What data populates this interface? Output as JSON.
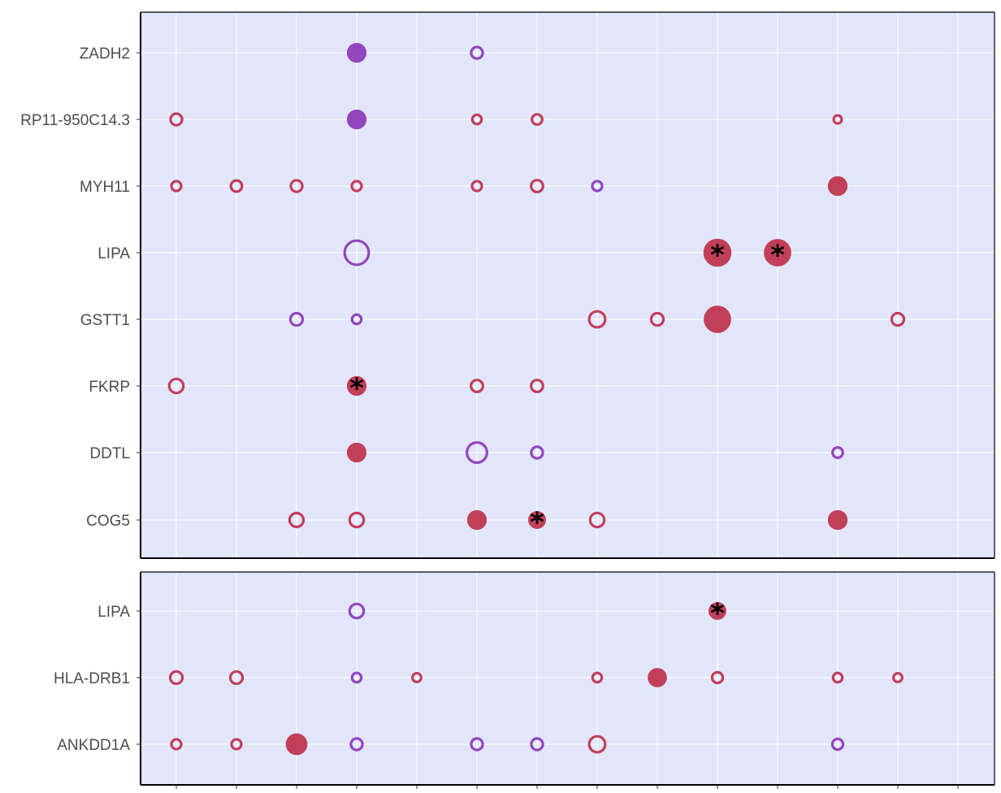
{
  "chart_data": {
    "type": "scatter",
    "description": "Dot plot of genes across 14 unlabeled columns; dot size = magnitude, filled = significant, star = highly significant",
    "columns": 14,
    "colors": {
      "panel_bg": "#e1e6fb",
      "grid": "#ffffff",
      "red": "#c23f5a",
      "purple": "#9346bd",
      "star": "#000000"
    },
    "panels": [
      {
        "name": "top",
        "genes": [
          "ZADH2",
          "RP11-950C14.3",
          "MYH11",
          "LIPA",
          "GSTT1",
          "FKRP",
          "DDTL",
          "COG5"
        ],
        "points": [
          {
            "gene": "ZADH2",
            "col": 4,
            "size": 3,
            "color": "purple",
            "filled": true,
            "star": false
          },
          {
            "gene": "ZADH2",
            "col": 6,
            "size": 1,
            "color": "purple",
            "filled": false,
            "star": false
          },
          {
            "gene": "RP11-950C14.3",
            "col": 1,
            "size": 1,
            "color": "red",
            "filled": false,
            "star": false
          },
          {
            "gene": "RP11-950C14.3",
            "col": 4,
            "size": 3,
            "color": "purple",
            "filled": true,
            "star": false
          },
          {
            "gene": "RP11-950C14.3",
            "col": 6,
            "size": 0.5,
            "color": "red",
            "filled": false,
            "star": false
          },
          {
            "gene": "RP11-950C14.3",
            "col": 7,
            "size": 0.7,
            "color": "red",
            "filled": false,
            "star": false
          },
          {
            "gene": "RP11-950C14.3",
            "col": 12,
            "size": 0.3,
            "color": "red",
            "filled": false,
            "star": false
          },
          {
            "gene": "MYH11",
            "col": 1,
            "size": 0.6,
            "color": "red",
            "filled": false,
            "star": false
          },
          {
            "gene": "MYH11",
            "col": 2,
            "size": 0.9,
            "color": "red",
            "filled": false,
            "star": false
          },
          {
            "gene": "MYH11",
            "col": 3,
            "size": 1,
            "color": "red",
            "filled": false,
            "star": false
          },
          {
            "gene": "MYH11",
            "col": 4,
            "size": 0.6,
            "color": "red",
            "filled": false,
            "star": false
          },
          {
            "gene": "MYH11",
            "col": 6,
            "size": 0.6,
            "color": "red",
            "filled": false,
            "star": false
          },
          {
            "gene": "MYH11",
            "col": 7,
            "size": 1.1,
            "color": "red",
            "filled": false,
            "star": false
          },
          {
            "gene": "MYH11",
            "col": 8,
            "size": 0.6,
            "color": "purple",
            "filled": false,
            "star": false
          },
          {
            "gene": "MYH11",
            "col": 12,
            "size": 3,
            "color": "red",
            "filled": true,
            "star": false
          },
          {
            "gene": "LIPA",
            "col": 4,
            "size": 7,
            "color": "purple",
            "filled": false,
            "star": false
          },
          {
            "gene": "LIPA",
            "col": 10,
            "size": 8,
            "color": "red",
            "filled": true,
            "star": true
          },
          {
            "gene": "LIPA",
            "col": 11,
            "size": 7.5,
            "color": "red",
            "filled": true,
            "star": true
          },
          {
            "gene": "GSTT1",
            "col": 3,
            "size": 1.2,
            "color": "purple",
            "filled": false,
            "star": false
          },
          {
            "gene": "GSTT1",
            "col": 4,
            "size": 0.5,
            "color": "purple",
            "filled": false,
            "star": false
          },
          {
            "gene": "GSTT1",
            "col": 8,
            "size": 2.5,
            "color": "red",
            "filled": false,
            "star": false
          },
          {
            "gene": "GSTT1",
            "col": 9,
            "size": 1.2,
            "color": "red",
            "filled": false,
            "star": false
          },
          {
            "gene": "GSTT1",
            "col": 10,
            "size": 7.5,
            "color": "red",
            "filled": true,
            "star": false
          },
          {
            "gene": "GSTT1",
            "col": 13,
            "size": 1.2,
            "color": "red",
            "filled": false,
            "star": false
          },
          {
            "gene": "FKRP",
            "col": 1,
            "size": 1.8,
            "color": "red",
            "filled": false,
            "star": false
          },
          {
            "gene": "FKRP",
            "col": 4,
            "size": 3,
            "color": "red",
            "filled": true,
            "star": true
          },
          {
            "gene": "FKRP",
            "col": 6,
            "size": 1.1,
            "color": "red",
            "filled": false,
            "star": false
          },
          {
            "gene": "FKRP",
            "col": 7,
            "size": 1.1,
            "color": "red",
            "filled": false,
            "star": false
          },
          {
            "gene": "DDTL",
            "col": 4,
            "size": 3,
            "color": "red",
            "filled": true,
            "star": false
          },
          {
            "gene": "DDTL",
            "col": 6,
            "size": 4.5,
            "color": "purple",
            "filled": false,
            "star": false
          },
          {
            "gene": "DDTL",
            "col": 7,
            "size": 1,
            "color": "purple",
            "filled": false,
            "star": false
          },
          {
            "gene": "DDTL",
            "col": 12,
            "size": 0.7,
            "color": "purple",
            "filled": false,
            "star": false
          },
          {
            "gene": "COG5",
            "col": 3,
            "size": 1.7,
            "color": "red",
            "filled": false,
            "star": false
          },
          {
            "gene": "COG5",
            "col": 4,
            "size": 1.8,
            "color": "red",
            "filled": false,
            "star": false
          },
          {
            "gene": "COG5",
            "col": 6,
            "size": 3,
            "color": "red",
            "filled": true,
            "star": false
          },
          {
            "gene": "COG5",
            "col": 7,
            "size": 2.2,
            "color": "red",
            "filled": true,
            "star": true
          },
          {
            "gene": "COG5",
            "col": 8,
            "size": 1.8,
            "color": "red",
            "filled": false,
            "star": false
          },
          {
            "gene": "COG5",
            "col": 12,
            "size": 3,
            "color": "red",
            "filled": true,
            "star": false
          }
        ]
      },
      {
        "name": "bottom",
        "genes": [
          "LIPA",
          "HLA-DRB1",
          "ANKDD1A"
        ],
        "points": [
          {
            "gene": "LIPA",
            "col": 4,
            "size": 1.8,
            "color": "purple",
            "filled": false,
            "star": false
          },
          {
            "gene": "LIPA",
            "col": 10,
            "size": 2.2,
            "color": "red",
            "filled": true,
            "star": true
          },
          {
            "gene": "HLA-DRB1",
            "col": 1,
            "size": 1.2,
            "color": "red",
            "filled": false,
            "star": false
          },
          {
            "gene": "HLA-DRB1",
            "col": 2,
            "size": 1.2,
            "color": "red",
            "filled": false,
            "star": false
          },
          {
            "gene": "HLA-DRB1",
            "col": 4,
            "size": 0.5,
            "color": "purple",
            "filled": false,
            "star": false
          },
          {
            "gene": "HLA-DRB1",
            "col": 5,
            "size": 0.4,
            "color": "red",
            "filled": false,
            "star": false
          },
          {
            "gene": "HLA-DRB1",
            "col": 8,
            "size": 0.5,
            "color": "red",
            "filled": false,
            "star": false
          },
          {
            "gene": "HLA-DRB1",
            "col": 9,
            "size": 2.8,
            "color": "red",
            "filled": true,
            "star": false
          },
          {
            "gene": "HLA-DRB1",
            "col": 10,
            "size": 0.8,
            "color": "red",
            "filled": false,
            "star": false
          },
          {
            "gene": "HLA-DRB1",
            "col": 12,
            "size": 0.5,
            "color": "red",
            "filled": false,
            "star": false
          },
          {
            "gene": "HLA-DRB1",
            "col": 13,
            "size": 0.4,
            "color": "red",
            "filled": false,
            "star": false
          },
          {
            "gene": "ANKDD1A",
            "col": 1,
            "size": 0.6,
            "color": "red",
            "filled": false,
            "star": false
          },
          {
            "gene": "ANKDD1A",
            "col": 2,
            "size": 0.6,
            "color": "red",
            "filled": false,
            "star": false
          },
          {
            "gene": "ANKDD1A",
            "col": 3,
            "size": 4,
            "color": "red",
            "filled": true,
            "star": false
          },
          {
            "gene": "ANKDD1A",
            "col": 4,
            "size": 1,
            "color": "purple",
            "filled": false,
            "star": false
          },
          {
            "gene": "ANKDD1A",
            "col": 6,
            "size": 1,
            "color": "purple",
            "filled": false,
            "star": false
          },
          {
            "gene": "ANKDD1A",
            "col": 7,
            "size": 1,
            "color": "purple",
            "filled": false,
            "star": false
          },
          {
            "gene": "ANKDD1A",
            "col": 8,
            "size": 2.5,
            "color": "red",
            "filled": false,
            "star": false
          },
          {
            "gene": "ANKDD1A",
            "col": 12,
            "size": 0.8,
            "color": "purple",
            "filled": false,
            "star": false
          }
        ]
      }
    ]
  }
}
